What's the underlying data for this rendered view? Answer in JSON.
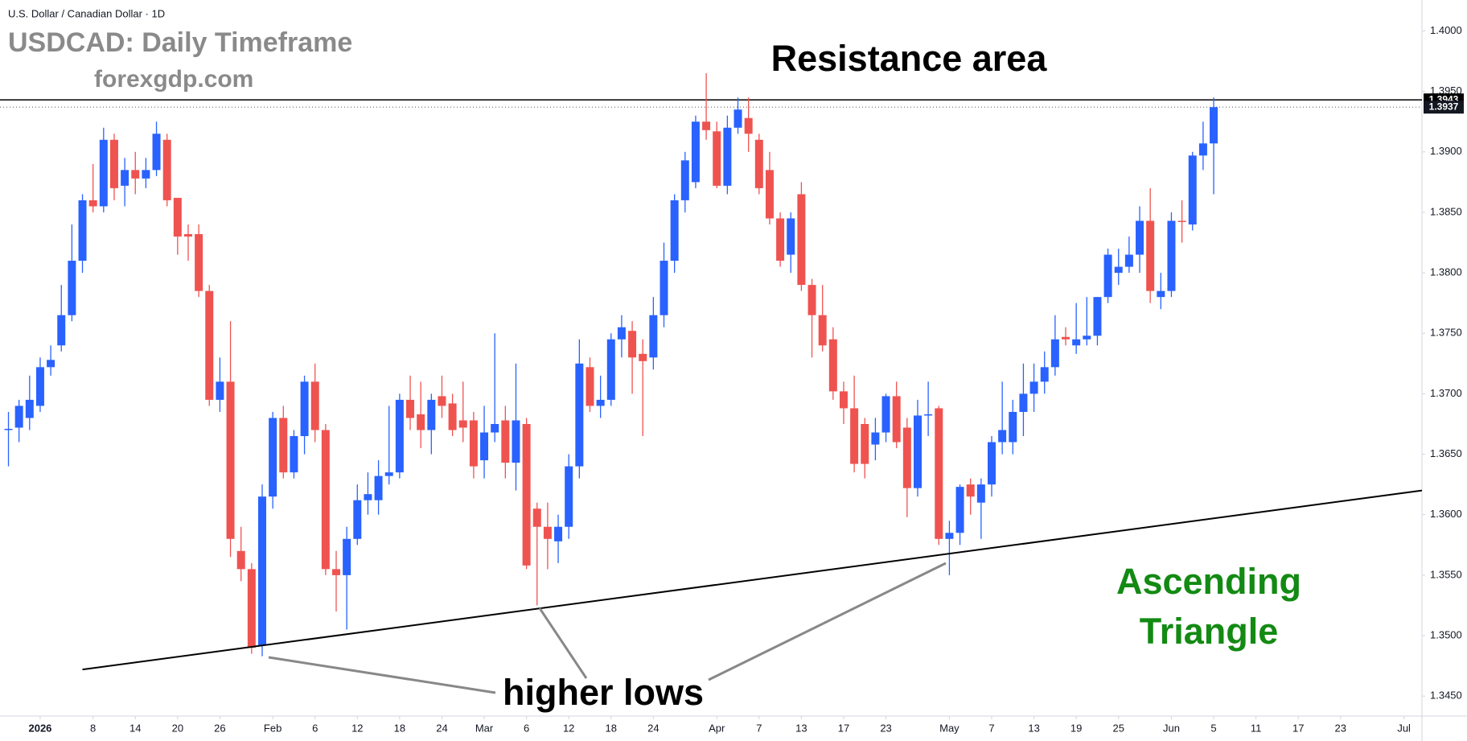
{
  "chart_data": {
    "type": "candlestick",
    "symbol_description": "U.S. Dollar / Canadian Dollar · 1D",
    "title": "USDCAD: Daily Timeframe",
    "subtitle": "forexgdp.com",
    "annotations": {
      "resistance": "Resistance area",
      "pattern": [
        "Ascending",
        "Triangle"
      ],
      "lows": "higher lows"
    },
    "up_color": "#2962ff",
    "down_color": "#ef5350",
    "open": [
      1.367,
      1.3672,
      1.368,
      1.369,
      1.3722,
      1.374,
      1.3765,
      1.381,
      1.386,
      1.3855,
      1.391,
      1.3872,
      1.3885,
      1.3878,
      1.3885,
      1.391,
      1.3862,
      1.3832,
      1.3832,
      1.3785,
      1.3695,
      1.371,
      1.357,
      1.3555,
      1.3492,
      1.3615,
      1.368,
      1.3635,
      1.3665,
      1.371,
      1.367,
      1.3555,
      1.355,
      1.358,
      1.3612,
      1.3612,
      1.3632,
      1.3635,
      1.3695,
      1.3683,
      1.367,
      1.3698,
      1.3692,
      1.3678,
      1.3678,
      1.3645,
      1.3668,
      1.3678,
      1.3643,
      1.3675,
      1.3605,
      1.359,
      1.3578,
      1.359,
      1.364,
      1.3722,
      1.369,
      1.3695,
      1.3745,
      1.3752,
      1.3733,
      1.373,
      1.3765,
      1.381,
      1.386,
      1.3875,
      1.3925,
      1.3917,
      1.3872,
      1.392,
      1.3928,
      1.391,
      1.3885,
      1.3845,
      1.3815,
      1.3865,
      1.379,
      1.3765,
      1.3745,
      1.3702,
      1.3688,
      1.3675,
      1.3658,
      1.3668,
      1.3698,
      1.3672,
      1.3622,
      1.3682,
      1.3688,
      1.358,
      1.3585,
      1.3625,
      1.361,
      1.3625,
      1.366,
      1.366,
      1.3685,
      1.37,
      1.371,
      1.3722,
      1.3747,
      1.374,
      1.3745,
      1.3748,
      1.378,
      1.38,
      1.3805,
      1.3815,
      1.3843,
      1.378,
      1.3785,
      1.3843,
      1.384,
      1.3897,
      1.3907
    ],
    "high": [
      1.3685,
      1.3695,
      1.3715,
      1.373,
      1.374,
      1.379,
      1.384,
      1.3865,
      1.389,
      1.392,
      1.3915,
      1.3895,
      1.39,
      1.3895,
      1.3925,
      1.3915,
      1.3862,
      1.384,
      1.384,
      1.379,
      1.373,
      1.376,
      1.359,
      1.356,
      1.3625,
      1.3685,
      1.369,
      1.367,
      1.3715,
      1.3725,
      1.3675,
      1.357,
      1.359,
      1.3625,
      1.3635,
      1.3645,
      1.369,
      1.37,
      1.3715,
      1.371,
      1.37,
      1.3715,
      1.37,
      1.371,
      1.3685,
      1.369,
      1.375,
      1.369,
      1.3725,
      1.368,
      1.361,
      1.361,
      1.36,
      1.365,
      1.3745,
      1.373,
      1.3715,
      1.375,
      1.3765,
      1.376,
      1.3745,
      1.378,
      1.3825,
      1.3865,
      1.39,
      1.393,
      1.3965,
      1.3925,
      1.393,
      1.3945,
      1.3945,
      1.3915,
      1.39,
      1.385,
      1.385,
      1.3875,
      1.3795,
      1.379,
      1.3755,
      1.371,
      1.3715,
      1.368,
      1.368,
      1.37,
      1.371,
      1.368,
      1.3695,
      1.371,
      1.369,
      1.3595,
      1.3625,
      1.363,
      1.363,
      1.3665,
      1.371,
      1.3695,
      1.3725,
      1.3725,
      1.3735,
      1.3765,
      1.3755,
      1.3775,
      1.378,
      1.378,
      1.382,
      1.382,
      1.383,
      1.3855,
      1.387,
      1.38,
      1.385,
      1.386,
      1.39,
      1.3925,
      1.3945
    ],
    "low": [
      1.364,
      1.366,
      1.367,
      1.3685,
      1.3715,
      1.3735,
      1.376,
      1.38,
      1.385,
      1.385,
      1.386,
      1.3855,
      1.3865,
      1.387,
      1.388,
      1.3855,
      1.3815,
      1.381,
      1.378,
      1.369,
      1.3685,
      1.3565,
      1.3545,
      1.3485,
      1.3483,
      1.3605,
      1.363,
      1.363,
      1.365,
      1.366,
      1.355,
      1.352,
      1.3505,
      1.3575,
      1.36,
      1.36,
      1.3625,
      1.363,
      1.367,
      1.3655,
      1.365,
      1.368,
      1.3665,
      1.366,
      1.363,
      1.363,
      1.366,
      1.363,
      1.362,
      1.3555,
      1.3525,
      1.3555,
      1.356,
      1.358,
      1.363,
      1.3685,
      1.368,
      1.369,
      1.373,
      1.37,
      1.3665,
      1.372,
      1.3755,
      1.38,
      1.385,
      1.387,
      1.391,
      1.387,
      1.3865,
      1.3915,
      1.39,
      1.3865,
      1.384,
      1.3805,
      1.38,
      1.3785,
      1.373,
      1.3735,
      1.3695,
      1.3675,
      1.3635,
      1.363,
      1.3645,
      1.366,
      1.3655,
      1.3598,
      1.3615,
      1.3665,
      1.3575,
      1.355,
      1.3575,
      1.36,
      1.358,
      1.3615,
      1.365,
      1.365,
      1.3665,
      1.3685,
      1.37,
      1.3715,
      1.374,
      1.3733,
      1.374,
      1.374,
      1.3775,
      1.379,
      1.38,
      1.38,
      1.3775,
      1.377,
      1.378,
      1.3825,
      1.3835,
      1.3885,
      1.3865
    ],
    "close": [
      1.3671,
      1.369,
      1.3695,
      1.3722,
      1.3728,
      1.3765,
      1.381,
      1.386,
      1.3855,
      1.391,
      1.387,
      1.3885,
      1.3878,
      1.3885,
      1.3915,
      1.386,
      1.383,
      1.383,
      1.3785,
      1.3695,
      1.371,
      1.358,
      1.3555,
      1.349,
      1.3615,
      1.368,
      1.3635,
      1.3665,
      1.371,
      1.367,
      1.3555,
      1.355,
      1.358,
      1.3612,
      1.3617,
      1.3632,
      1.3635,
      1.3695,
      1.368,
      1.367,
      1.3695,
      1.369,
      1.367,
      1.3672,
      1.364,
      1.3668,
      1.3675,
      1.3643,
      1.3678,
      1.3558,
      1.359,
      1.358,
      1.359,
      1.364,
      1.3725,
      1.369,
      1.3695,
      1.3745,
      1.3755,
      1.373,
      1.3727,
      1.3765,
      1.381,
      1.386,
      1.3893,
      1.3925,
      1.3918,
      1.3872,
      1.392,
      1.3935,
      1.3915,
      1.387,
      1.3845,
      1.381,
      1.3845,
      1.379,
      1.3765,
      1.374,
      1.3702,
      1.3688,
      1.3642,
      1.3642,
      1.3668,
      1.3698,
      1.366,
      1.3622,
      1.3682,
      1.3683,
      1.358,
      1.3585,
      1.3623,
      1.3615,
      1.3625,
      1.366,
      1.367,
      1.3685,
      1.37,
      1.371,
      1.3722,
      1.3745,
      1.3745,
      1.3745,
      1.3748,
      1.378,
      1.3815,
      1.3805,
      1.3815,
      1.3843,
      1.3785,
      1.3785,
      1.3843,
      1.3842,
      1.3897,
      1.3907,
      1.3937
    ],
    "xlim": [
      -0.8,
      133.7
    ],
    "xticks": [
      {
        "value": 3,
        "label": "2026"
      },
      {
        "value": 8,
        "label": "8"
      },
      {
        "value": 12,
        "label": "14"
      },
      {
        "value": 16,
        "label": "20"
      },
      {
        "value": 20,
        "label": "26"
      },
      {
        "value": 25,
        "label": "Feb"
      },
      {
        "value": 29,
        "label": "6"
      },
      {
        "value": 33,
        "label": "12"
      },
      {
        "value": 37,
        "label": "18"
      },
      {
        "value": 41,
        "label": "24"
      },
      {
        "value": 45,
        "label": "Mar"
      },
      {
        "value": 49,
        "label": "6"
      },
      {
        "value": 53,
        "label": "12"
      },
      {
        "value": 57,
        "label": "18"
      },
      {
        "value": 61,
        "label": "24"
      },
      {
        "value": 67,
        "label": "Apr"
      },
      {
        "value": 71,
        "label": "7"
      },
      {
        "value": 75,
        "label": "13"
      },
      {
        "value": 79,
        "label": "17"
      },
      {
        "value": 83,
        "label": "23"
      },
      {
        "value": 89,
        "label": "May"
      },
      {
        "value": 93,
        "label": "7"
      },
      {
        "value": 97,
        "label": "13"
      },
      {
        "value": 101,
        "label": "19"
      },
      {
        "value": 105,
        "label": "25"
      },
      {
        "value": 110,
        "label": "Jun"
      },
      {
        "value": 114,
        "label": "5"
      },
      {
        "value": 118,
        "label": "11"
      },
      {
        "value": 122,
        "label": "17"
      },
      {
        "value": 126,
        "label": "23"
      },
      {
        "value": 132,
        "label": "Jul"
      }
    ],
    "ylim": [
      1.34335,
      1.40256
    ],
    "yticks": [
      {
        "value": 1.345,
        "label": "1.3450"
      },
      {
        "value": 1.35,
        "label": "1.3500"
      },
      {
        "value": 1.355,
        "label": "1.3550"
      },
      {
        "value": 1.36,
        "label": "1.3600"
      },
      {
        "value": 1.365,
        "label": "1.3650"
      },
      {
        "value": 1.37,
        "label": "1.3700"
      },
      {
        "value": 1.375,
        "label": "1.3750"
      },
      {
        "value": 1.38,
        "label": "1.3800"
      },
      {
        "value": 1.385,
        "label": "1.3850"
      },
      {
        "value": 1.39,
        "label": "1.3900"
      },
      {
        "value": 1.395,
        "label": "1.3950"
      },
      {
        "value": 1.4,
        "label": "1.4000"
      }
    ],
    "grid": false,
    "resistance_line": {
      "value": 1.3943,
      "label": "1.3943"
    },
    "last_price": {
      "value": 1.3937,
      "label": "1.3937"
    },
    "trendline": {
      "x": [
        7,
        133.7
      ],
      "y": [
        1.3472,
        1.362
      ]
    }
  }
}
